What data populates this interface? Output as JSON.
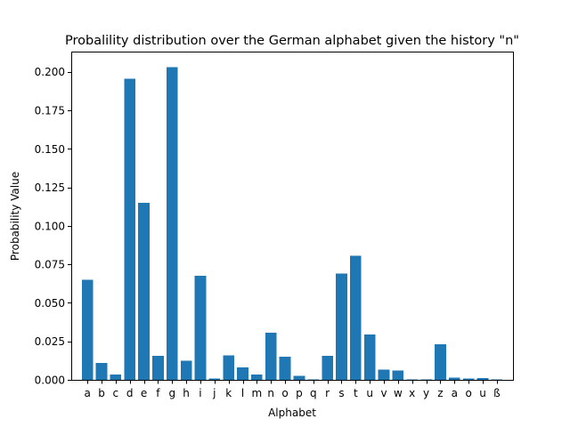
{
  "chart_data": {
    "type": "bar",
    "title": "Probalility distribution over the German alphabet given the history \"n\"",
    "xlabel": "Alphabet",
    "ylabel": "Probability Value",
    "categories": [
      "a",
      "b",
      "c",
      "d",
      "e",
      "f",
      "g",
      "h",
      "i",
      "j",
      "k",
      "l",
      "m",
      "n",
      "o",
      "p",
      "q",
      "r",
      "s",
      "t",
      "u",
      "v",
      "w",
      "x",
      "y",
      "z",
      "a",
      "o",
      "u",
      "ß"
    ],
    "values": [
      0.065,
      0.011,
      0.0035,
      0.1955,
      0.115,
      0.0155,
      0.203,
      0.0125,
      0.0675,
      0.0008,
      0.016,
      0.008,
      0.0035,
      0.0305,
      0.015,
      0.0025,
      0.0002,
      0.0155,
      0.069,
      0.0805,
      0.0295,
      0.0065,
      0.006,
      0.0002,
      0.0002,
      0.023,
      0.0015,
      0.0008,
      0.0012,
      0.0004
    ],
    "ylim": [
      0,
      0.2131
    ],
    "yticks": [
      0.0,
      0.025,
      0.05,
      0.075,
      0.1,
      0.125,
      0.15,
      0.175,
      0.2
    ],
    "ytick_labels": [
      "0.000",
      "0.025",
      "0.050",
      "0.075",
      "0.100",
      "0.125",
      "0.150",
      "0.175",
      "0.200"
    ],
    "bar_color": "#1f77b4",
    "grid": false,
    "legend": "none"
  }
}
